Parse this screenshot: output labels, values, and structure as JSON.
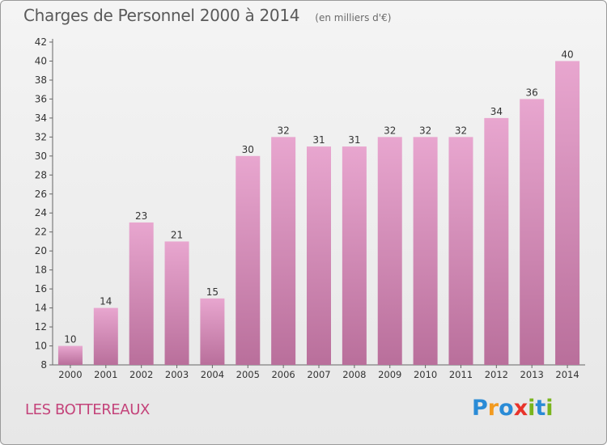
{
  "chart_data": {
    "type": "bar",
    "title": "Charges de Personnel 2000 à 2014",
    "subtitle": "(en milliers d'€)",
    "categories": [
      "2000",
      "2001",
      "2002",
      "2003",
      "2004",
      "2005",
      "2006",
      "2007",
      "2008",
      "2009",
      "2010",
      "2011",
      "2012",
      "2013",
      "2014"
    ],
    "values": [
      10,
      14,
      23,
      21,
      15,
      30,
      32,
      31,
      31,
      32,
      32,
      32,
      34,
      36,
      40
    ],
    "xlabel": "",
    "ylabel": "",
    "ylim": [
      8,
      42
    ],
    "yticks": [
      8,
      10,
      12,
      14,
      16,
      18,
      20,
      22,
      24,
      26,
      28,
      30,
      32,
      34,
      36,
      38,
      40,
      42
    ],
    "grid": false,
    "legend": "none",
    "bar_color_top": "#e8a6cf",
    "bar_color_bottom": "#b96f9b",
    "label_color": "#333333"
  },
  "place": {
    "name": "LES BOTTEREAUX",
    "color": "#c4437a"
  },
  "logo": {
    "text": "Proxiti",
    "letters": [
      {
        "ch": "P",
        "color": "#2a8bd6"
      },
      {
        "ch": "r",
        "color": "#f29a1f"
      },
      {
        "ch": "o",
        "color": "#2a8bd6"
      },
      {
        "ch": "x",
        "color": "#e8332a"
      },
      {
        "ch": "i",
        "color": "#7ab51d"
      },
      {
        "ch": "t",
        "color": "#2a8bd6"
      },
      {
        "ch": "i",
        "color": "#7ab51d"
      }
    ]
  }
}
